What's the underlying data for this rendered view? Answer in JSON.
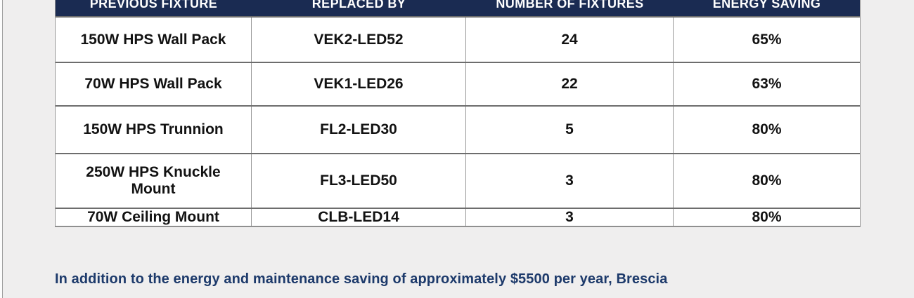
{
  "page": {
    "background_color": "#efeeee",
    "header_navy": "#1a2b52",
    "paragraph_navy": "#1d3a6b"
  },
  "table": {
    "columns": [
      "PREVIOUS FIXTURE",
      "REPLACED BY",
      "NUMBER OF FIXTURES",
      "ENERGY SAVING"
    ],
    "rows": [
      {
        "previous_fixture": "150W HPS Wall Pack",
        "replaced_by": "VEK2-LED52",
        "fixtures": "24",
        "saving": "65%"
      },
      {
        "previous_fixture": "70W HPS Wall Pack",
        "replaced_by": "VEK1-LED26",
        "fixtures": "22",
        "saving": "63%"
      },
      {
        "previous_fixture": "150W HPS Trunnion",
        "replaced_by": "FL2-LED30",
        "fixtures": "5",
        "saving": "80%"
      },
      {
        "previous_fixture": "250W HPS Knuckle Mount",
        "replaced_by": "FL3-LED50",
        "fixtures": "3",
        "saving": "80%"
      },
      {
        "previous_fixture": "70W Ceiling Mount",
        "replaced_by": "CLB-LED14",
        "fixtures": "3",
        "saving": "80%"
      }
    ]
  },
  "paragraph": {
    "text": "In addition to the energy and maintenance saving of approximately $5500 per year, Brescia"
  }
}
